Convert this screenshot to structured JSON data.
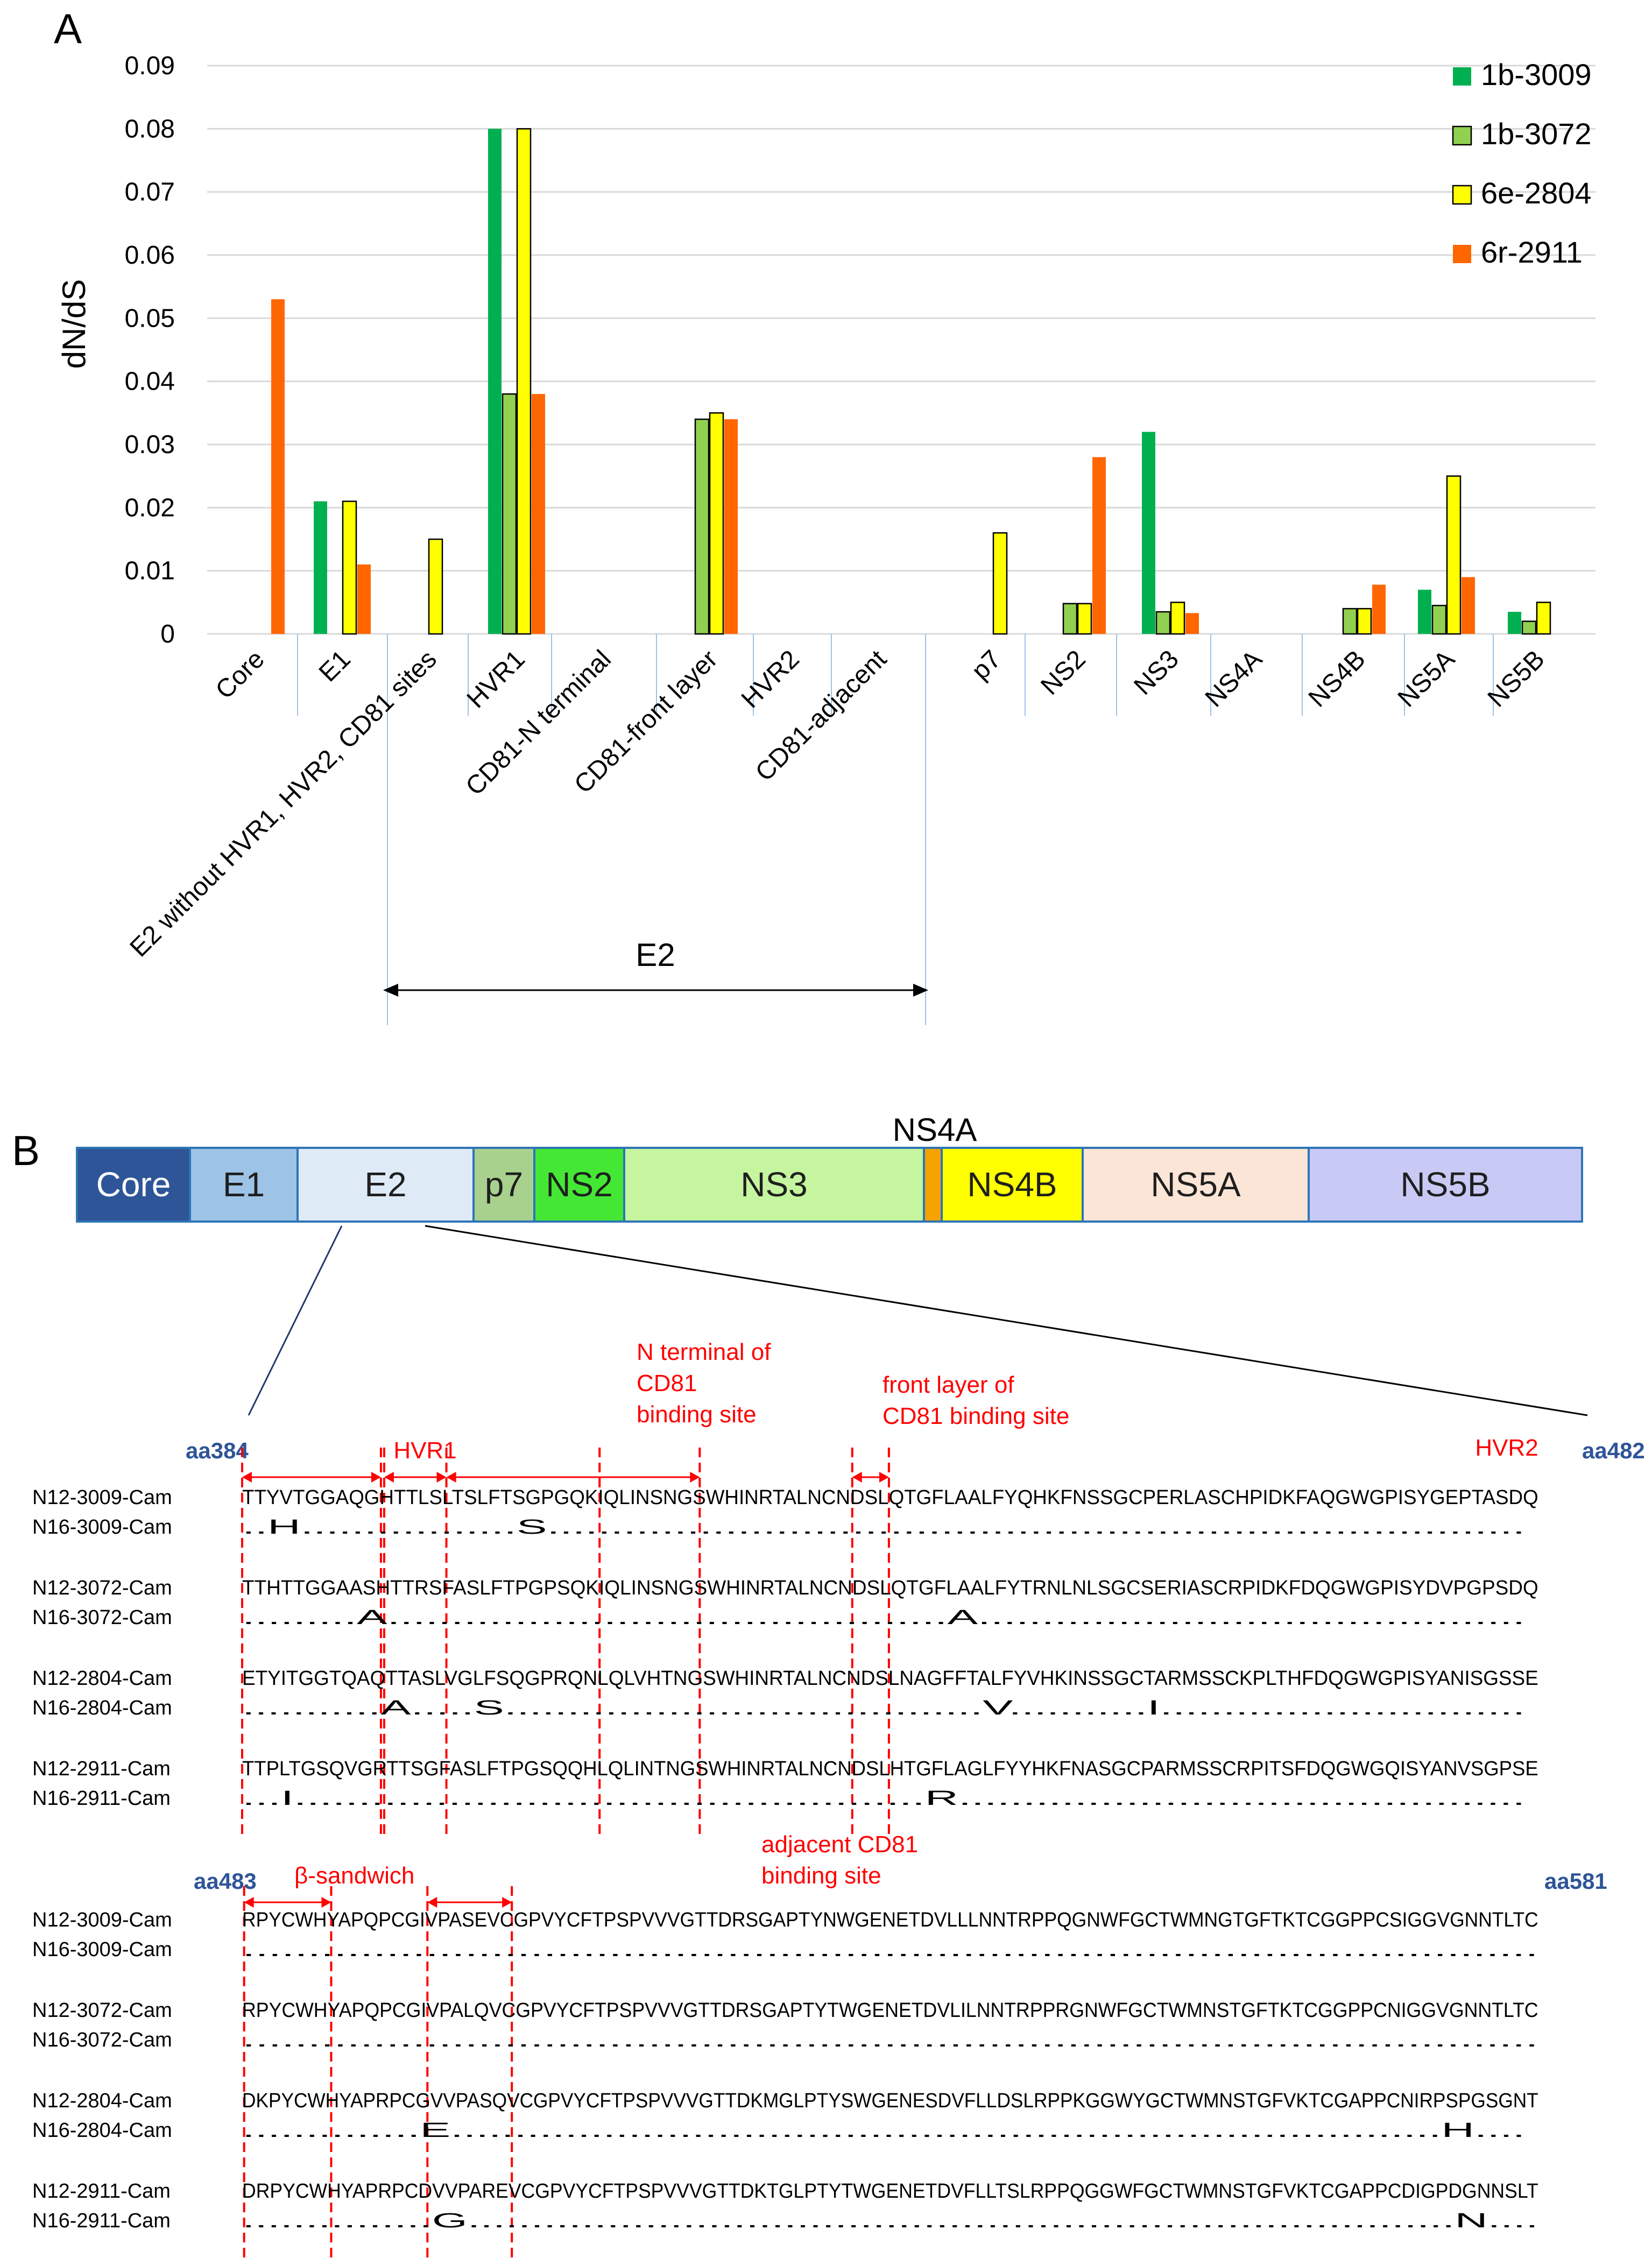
{
  "panel_a_label": "A",
  "panel_b_label": "B",
  "chart_data": {
    "type": "bar",
    "title": "",
    "xlabel": "",
    "ylabel": "dN/dS",
    "ylim": [
      0,
      0.09
    ],
    "yticks": [
      "0",
      "0.01",
      "0.02",
      "0.03",
      "0.04",
      "0.05",
      "0.06",
      "0.07",
      "0.08",
      "0.09"
    ],
    "grid": true,
    "legend_position": "top-right",
    "categories": [
      "Core",
      "E1",
      "E2 without HVR1, HVR2, CD81 sites",
      "HVR1",
      "CD81-N terminal",
      "CD81-front layer",
      "HVR2",
      "CD81-adjacent",
      "p7",
      "NS2",
      "NS3",
      "NS4A",
      "NS4B",
      "NS5A",
      "NS5B"
    ],
    "series": [
      {
        "name": "1b-3009",
        "color": "#00b050",
        "values": [
          0,
          0.021,
          0,
          0.08,
          0,
          0,
          0,
          0,
          0,
          0,
          0.032,
          0,
          0,
          0.007,
          0.0035
        ]
      },
      {
        "name": "1b-3072",
        "color": "#92d050",
        "values": [
          0,
          0,
          0,
          0.038,
          0,
          0.034,
          0,
          0,
          0,
          0.0048,
          0.0035,
          0,
          0.004,
          0.0045,
          0.002
        ]
      },
      {
        "name": "6e-2804",
        "color": "#ffff00",
        "values": [
          0,
          0.021,
          0.015,
          0.08,
          0,
          0.035,
          0,
          0,
          0.016,
          0.0048,
          0.005,
          0,
          0.004,
          0.025,
          0.005
        ]
      },
      {
        "name": "6r-2911",
        "color": "#ff6600",
        "values": [
          0.053,
          0.011,
          0,
          0.038,
          0,
          0.034,
          0,
          0,
          0,
          0.028,
          0.0033,
          0,
          0.0078,
          0.009,
          0
        ]
      }
    ],
    "e2_bracket_label": "E2"
  },
  "genome": {
    "segments": [
      {
        "label": "Core",
        "color": "#2e5597",
        "text_color": "#ffffff"
      },
      {
        "label": "E1",
        "color": "#9dc3e6",
        "text_color": "#1f1f1f"
      },
      {
        "label": "E2",
        "color": "#deebf7",
        "text_color": "#1f1f1f"
      },
      {
        "label": "p7",
        "color": "#a9d18e",
        "text_color": "#1f1f1f"
      },
      {
        "label": "NS2",
        "color": "#44e834",
        "text_color": "#1f1f1f"
      },
      {
        "label": "NS3",
        "color": "#c5f59e",
        "text_color": "#1f1f1f"
      },
      {
        "label": "",
        "color": "#f5a300",
        "text_color": "#1f1f1f"
      },
      {
        "label": "NS4B",
        "color": "#ffff00",
        "text_color": "#1f1f1f"
      },
      {
        "label": "NS5A",
        "color": "#fbe5d6",
        "text_color": "#1f1f1f"
      },
      {
        "label": "NS5B",
        "color": "#c9c9f5",
        "text_color": "#1f1f1f"
      }
    ],
    "ns4a_label": "NS4A"
  },
  "alignment": {
    "block1": {
      "start_label": "aa384",
      "end_label": "aa482",
      "regions": [
        {
          "label": "HVR1"
        },
        {
          "label_lines": [
            "N terminal of",
            "CD81",
            "binding site"
          ]
        },
        {
          "label_lines": [
            "front  layer of",
            "CD81 binding site"
          ]
        },
        {
          "label": "HVR2"
        }
      ],
      "rows": [
        {
          "name": "N12-3009-Cam",
          "seq": "TTYVTGGAQGHTTLSLTSLFTSGPGQKIQLINSNGSWHINRTALNCNDSLQTGFLAALFYQHKFNSSGCPERLASCHPIDKFAQGWGPISYGEPTASDQ"
        },
        {
          "name": "N16-3009-Cam",
          "seq": "..H.................S............................................................................."
        },
        {
          "name": "N12-3072-Cam",
          "seq": "TTHTTGGAASHTTRSFASLFTPGPSQKIQLINSNGSWHINRTALNCNDSLQTGFLAALFYTRNLNLSGCSERIASCRPIDKFDQGWGPISYDVPGPSDQ"
        },
        {
          "name": "N16-3072-Cam",
          "seq": ".........A............................................A..........................................."
        },
        {
          "name": "N12-2804-Cam",
          "seq": "ETYITGGTQAQTTASLVGLFSQGPRQNLQLVHTNGSWHINRTALNCNDSLNAGFFTALFYVHKINSSGCTARMSSCKPLTHFDQGWGPISYANISGSSE"
        },
        {
          "name": "N16-2804-Cam",
          "seq": "...........A.....S......................................V...........I............................."
        },
        {
          "name": "N12-2911-Cam",
          "seq": "TTPLTGSQVGRTTSGFASLFTPGSQQHLQLINTNGSWHINRTALNCNDSLHTGFLAGLFYYHKFNASGCPARMSSCRPITSFDQGWGQISYANVSGPSE"
        },
        {
          "name": "N16-2911-Cam",
          "seq": "...I.................................................R............................................"
        }
      ]
    },
    "block2": {
      "start_label": "aa483",
      "end_label": "aa581",
      "regions": [
        {
          "label": "β-sandwich"
        },
        {
          "label_lines": [
            "adjacent CD81",
            "binding site"
          ]
        }
      ],
      "rows": [
        {
          "name": "N12-3009-Cam",
          "seq": "RPYCWHYAPQPCGIVPASEVCGPVYCFTPSPVVVGTTDRSGAPTYNWGENETDVLLLNNTRPPQGNWFGCTWMNGTGFTKTCGGPPCSIGGVGNNTLTC"
        },
        {
          "name": "N16-3009-Cam",
          "seq": "..................................................................................................."
        },
        {
          "name": "N12-3072-Cam",
          "seq": "RPYCWHYAPQPCGIVPALQVCGPVYCFTPSPVVVGTTDRSGAPTYTWGENETDVLILNNTRPPRGNWFGCTWMNSTGFTKTCGGPPCNIGGVGNNTLTC"
        },
        {
          "name": "N16-3072-Cam",
          "seq": "..................................................................................................."
        },
        {
          "name": "N12-2804-Cam",
          "seq": "DKPYCWHYAPRPCGVVPASQVCGPVYCFTPSPVVVGTTDKMGLPTYSWGENESDVFLLDSLRPPKGGWYGCTWMNSTGFVKTCGAPPCNIRPSPGSGNT"
        },
        {
          "name": "N16-2804-Cam",
          "seq": "..............E..............................................................................H...."
        },
        {
          "name": "N12-2911-Cam",
          "seq": "DRPYCWHYAPRPCDVVPAREVCGPVYCFTPSPVVVGTTDKTGLPTYTWGENETDVFLLTSLRPPQGGWFGCTWMNSTGFVKTCGAPPCDIGPDGNNSLT"
        },
        {
          "name": "N16-2911-Cam",
          "seq": "...............G..............................................................................N...."
        }
      ]
    }
  }
}
